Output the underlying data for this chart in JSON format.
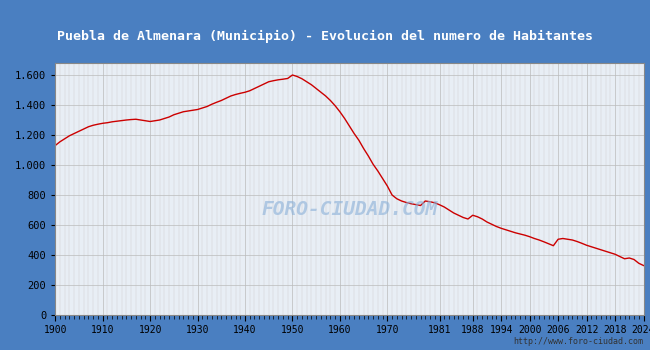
{
  "title": "Puebla de Almenara (Municipio) - Evolucion del numero de Habitantes",
  "title_color": "white",
  "title_bg_color": "#4a7fc1",
  "plot_bg_color": "#e8eef5",
  "outer_bg_color": "#4a7fc1",
  "line_color": "#cc0000",
  "watermark_text": "FORO-CIUDAD.COM",
  "url_text": "http://www.foro-ciudad.com",
  "years": [
    1900,
    1901,
    1902,
    1903,
    1904,
    1905,
    1906,
    1907,
    1908,
    1909,
    1910,
    1911,
    1912,
    1913,
    1914,
    1915,
    1916,
    1917,
    1918,
    1919,
    1920,
    1921,
    1922,
    1923,
    1924,
    1925,
    1926,
    1927,
    1928,
    1929,
    1930,
    1931,
    1932,
    1933,
    1934,
    1935,
    1936,
    1937,
    1938,
    1939,
    1940,
    1941,
    1942,
    1943,
    1944,
    1945,
    1946,
    1947,
    1948,
    1949,
    1950,
    1951,
    1952,
    1953,
    1954,
    1955,
    1956,
    1957,
    1958,
    1959,
    1960,
    1961,
    1962,
    1963,
    1964,
    1965,
    1966,
    1967,
    1968,
    1969,
    1970,
    1971,
    1972,
    1973,
    1974,
    1975,
    1976,
    1977,
    1978,
    1979,
    1980,
    1981,
    1982,
    1983,
    1984,
    1985,
    1986,
    1987,
    1988,
    1989,
    1990,
    1991,
    1992,
    1993,
    1994,
    1995,
    1996,
    1997,
    1998,
    1999,
    2000,
    2001,
    2002,
    2003,
    2004,
    2005,
    2006,
    2007,
    2008,
    2009,
    2010,
    2011,
    2012,
    2013,
    2014,
    2015,
    2016,
    2017,
    2018,
    2019,
    2020,
    2021,
    2022,
    2023,
    2024
  ],
  "population": [
    1130,
    1155,
    1175,
    1195,
    1210,
    1225,
    1240,
    1255,
    1265,
    1272,
    1278,
    1282,
    1288,
    1292,
    1296,
    1300,
    1303,
    1305,
    1300,
    1295,
    1290,
    1295,
    1300,
    1310,
    1320,
    1335,
    1345,
    1355,
    1360,
    1365,
    1370,
    1380,
    1390,
    1405,
    1418,
    1430,
    1445,
    1460,
    1470,
    1478,
    1485,
    1495,
    1510,
    1525,
    1540,
    1555,
    1562,
    1568,
    1572,
    1577,
    1600,
    1590,
    1575,
    1555,
    1535,
    1510,
    1485,
    1460,
    1430,
    1395,
    1355,
    1310,
    1260,
    1210,
    1165,
    1110,
    1060,
    1005,
    960,
    910,
    860,
    800,
    775,
    760,
    750,
    742,
    736,
    730,
    760,
    755,
    748,
    735,
    720,
    700,
    680,
    665,
    650,
    640,
    665,
    655,
    640,
    620,
    605,
    590,
    578,
    568,
    558,
    548,
    540,
    532,
    522,
    510,
    500,
    488,
    475,
    462,
    505,
    510,
    505,
    500,
    490,
    478,
    465,
    455,
    445,
    435,
    425,
    415,
    405,
    390,
    375,
    380,
    370,
    345,
    330
  ],
  "xticks": [
    1900,
    1910,
    1920,
    1930,
    1940,
    1950,
    1960,
    1970,
    1981,
    1988,
    1994,
    2000,
    2006,
    2012,
    2018,
    2024
  ],
  "yticks": [
    0,
    200,
    400,
    600,
    800,
    1000,
    1200,
    1400,
    1600
  ],
  "ylim": [
    0,
    1680
  ],
  "xlim": [
    1900,
    2024
  ]
}
